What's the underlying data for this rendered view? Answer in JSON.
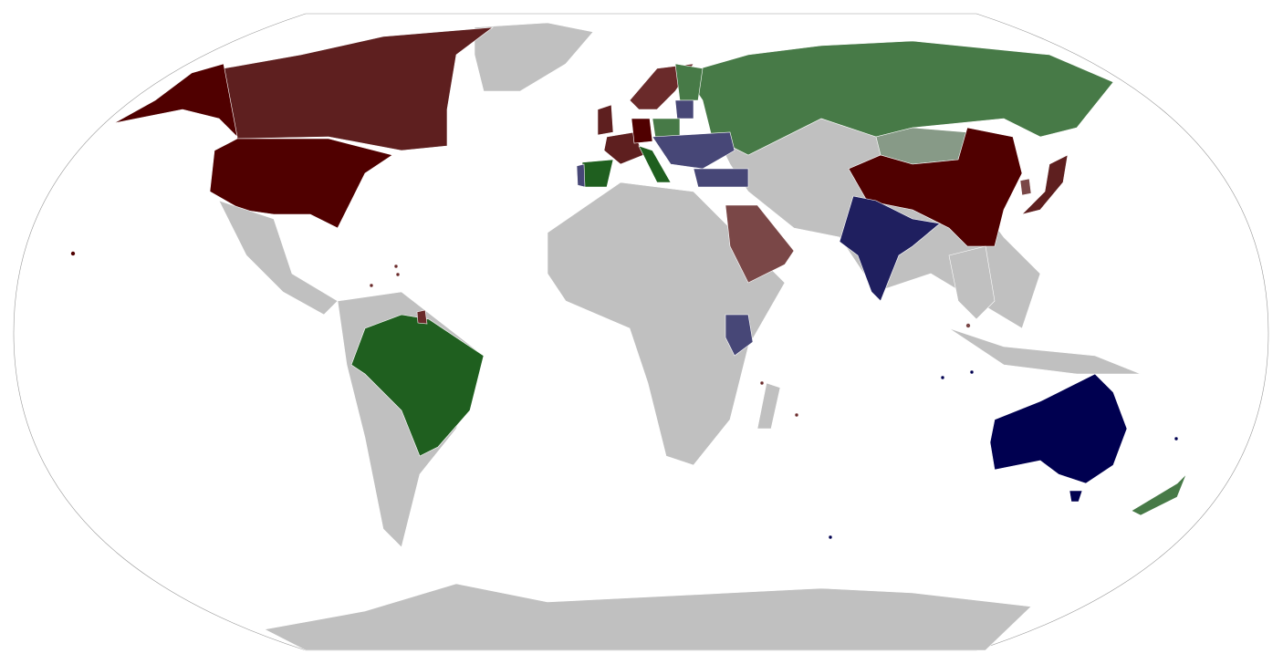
{
  "map": {
    "projection": "robinson",
    "colors": {
      "background": "#ffffff",
      "outline": "#999999",
      "land_default": "#c0c0c0",
      "border": "#ffffff",
      "dark_red": "#500000",
      "red_mid": "#5e1f1f",
      "red_light": "#6a2a2a",
      "red_pale": "#7a4747",
      "green_dark": "#1f5f1f",
      "green_mid": "#477a47",
      "green_pale": "#879a87",
      "navy_dark": "#000050",
      "navy_mid": "#1f1f5f",
      "navy_pale": "#474777"
    }
  }
}
